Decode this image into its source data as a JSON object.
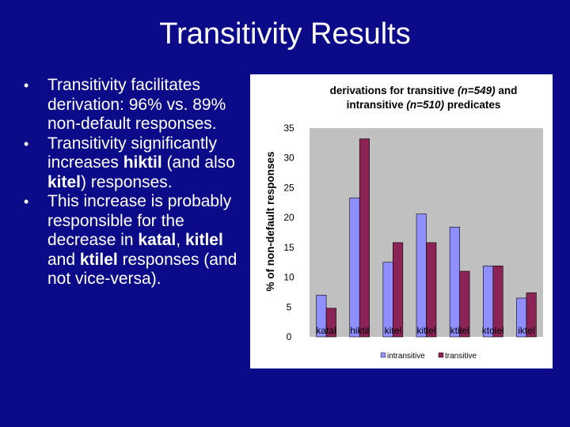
{
  "slide": {
    "title": "Transitivity Results",
    "bullets": [
      {
        "parts": [
          {
            "t": "Transitivity facilitates derivation: 96% vs. 89% non-default responses."
          }
        ]
      },
      {
        "parts": [
          {
            "t": "Transitivity significantly increases "
          },
          {
            "t": "hiktil",
            "b": true
          },
          {
            "t": " (and also "
          },
          {
            "t": "kitel",
            "b": true
          },
          {
            "t": ") responses."
          }
        ]
      },
      {
        "parts": [
          {
            "t": "This increase is probably responsible for the decrease in "
          },
          {
            "t": "katal",
            "b": true
          },
          {
            "t": ", "
          },
          {
            "t": "kitlel",
            "b": true
          },
          {
            "t": " and "
          },
          {
            "t": "ktilel",
            "b": true
          },
          {
            "t": " responses (and not vice-versa)."
          }
        ]
      }
    ]
  },
  "chart_data": {
    "type": "bar",
    "title_line1_a": "derivations for transitive ",
    "title_line1_b": "(n=549)",
    "title_line1_c": "  and",
    "title_line2_a": "intransitive ",
    "title_line2_b": "(n=510)",
    "title_line2_c": "  predicates",
    "ylabel": "% of non-default responses",
    "ylim": [
      0,
      35
    ],
    "yticks": [
      0,
      5,
      10,
      15,
      20,
      25,
      30,
      35
    ],
    "categories": [
      "katal",
      "hiktil",
      "kitel",
      "kitlel",
      "ktilel",
      "ktolel",
      "iktel"
    ],
    "series": [
      {
        "name": "intransitive",
        "color": "#8f8fff",
        "values": [
          7.0,
          23.3,
          12.5,
          20.6,
          18.4,
          11.9,
          6.5
        ]
      },
      {
        "name": "transitive",
        "color": "#8b2357",
        "values": [
          4.8,
          33.2,
          15.8,
          15.8,
          11.0,
          11.9,
          7.4
        ]
      }
    ],
    "legend_position": "bottom",
    "plot_background": "#c0c0c0"
  }
}
